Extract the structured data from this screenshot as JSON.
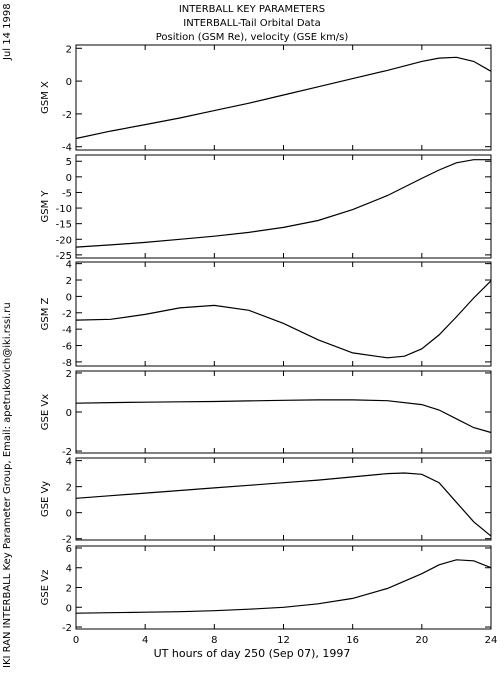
{
  "header": {
    "title_lines": [
      "INTERBALL KEY PARAMETERS",
      "INTERBALL-Tail Orbital Data",
      "Position (GSM Re), velocity (GSE km/s)"
    ]
  },
  "side_labels": {
    "date": "Jul 14 1998",
    "credits": "IKI RAN INTERBALL Key Parameter Group, Email: apetrukovich@iki.rssi.ru"
  },
  "chart_data": {
    "type": "line",
    "x_axis": {
      "label": "UT hours of day 250 (Sep 07), 1997",
      "range": [
        0,
        24
      ],
      "ticks": [
        0,
        4,
        8,
        12,
        16,
        20,
        24
      ]
    },
    "panels": [
      {
        "ylabel": "GSM X",
        "ylim": [
          -4.2,
          2.2
        ],
        "yticks": [
          -4,
          -2,
          0,
          2
        ],
        "x": [
          0,
          2,
          4,
          6,
          8,
          10,
          12,
          14,
          16,
          18,
          20,
          21,
          22,
          23,
          24
        ],
        "y": [
          -3.5,
          -3.05,
          -2.65,
          -2.25,
          -1.8,
          -1.35,
          -0.85,
          -0.35,
          0.15,
          0.65,
          1.2,
          1.4,
          1.45,
          1.2,
          0.6
        ]
      },
      {
        "ylabel": "GSM Y",
        "ylim": [
          -26,
          7
        ],
        "yticks": [
          -25,
          -20,
          -15,
          -10,
          -5,
          0,
          5
        ],
        "x": [
          0,
          2,
          4,
          6,
          8,
          10,
          12,
          14,
          16,
          18,
          20,
          21,
          22,
          23,
          24
        ],
        "y": [
          -22.5,
          -21.8,
          -21,
          -20,
          -19,
          -17.8,
          -16.2,
          -14,
          -10.5,
          -6,
          -0.5,
          2.2,
          4.5,
          5.5,
          5.5
        ]
      },
      {
        "ylabel": "GSM Z",
        "ylim": [
          -8.5,
          4.2
        ],
        "yticks": [
          -8,
          -6,
          -4,
          -2,
          0,
          2,
          4
        ],
        "x": [
          0,
          2,
          4,
          6,
          8,
          10,
          12,
          14,
          16,
          18,
          19,
          20,
          21,
          22,
          23,
          24
        ],
        "y": [
          -2.9,
          -2.8,
          -2.2,
          -1.4,
          -1.1,
          -1.7,
          -3.3,
          -5.3,
          -6.9,
          -7.5,
          -7.3,
          -6.4,
          -4.7,
          -2.5,
          -0.2,
          1.9
        ]
      },
      {
        "ylabel": "GSE Vx",
        "ylim": [
          -2.1,
          2.1
        ],
        "yticks": [
          -2,
          0,
          2
        ],
        "x": [
          0,
          2,
          4,
          6,
          8,
          10,
          12,
          14,
          16,
          18,
          20,
          21,
          22,
          23,
          24
        ],
        "y": [
          0.45,
          0.48,
          0.5,
          0.52,
          0.54,
          0.57,
          0.6,
          0.62,
          0.62,
          0.58,
          0.38,
          0.1,
          -0.35,
          -0.8,
          -1.05
        ]
      },
      {
        "ylabel": "GSE Vy",
        "ylim": [
          -2.1,
          4.2
        ],
        "yticks": [
          -2,
          0,
          2,
          4
        ],
        "x": [
          0,
          2,
          4,
          6,
          8,
          10,
          12,
          14,
          16,
          18,
          19,
          20,
          21,
          22,
          23,
          24
        ],
        "y": [
          1.1,
          1.3,
          1.5,
          1.7,
          1.9,
          2.1,
          2.3,
          2.5,
          2.75,
          3.0,
          3.05,
          2.95,
          2.3,
          0.8,
          -0.7,
          -1.8
        ]
      },
      {
        "ylabel": "GSE Vz",
        "ylim": [
          -2.2,
          6.2
        ],
        "yticks": [
          -2,
          0,
          2,
          4,
          6
        ],
        "x": [
          0,
          2,
          4,
          6,
          8,
          10,
          12,
          14,
          16,
          18,
          20,
          21,
          22,
          23,
          24
        ],
        "y": [
          -0.6,
          -0.55,
          -0.5,
          -0.45,
          -0.35,
          -0.2,
          0,
          0.35,
          0.9,
          1.9,
          3.4,
          4.3,
          4.8,
          4.7,
          4.0
        ]
      }
    ]
  }
}
